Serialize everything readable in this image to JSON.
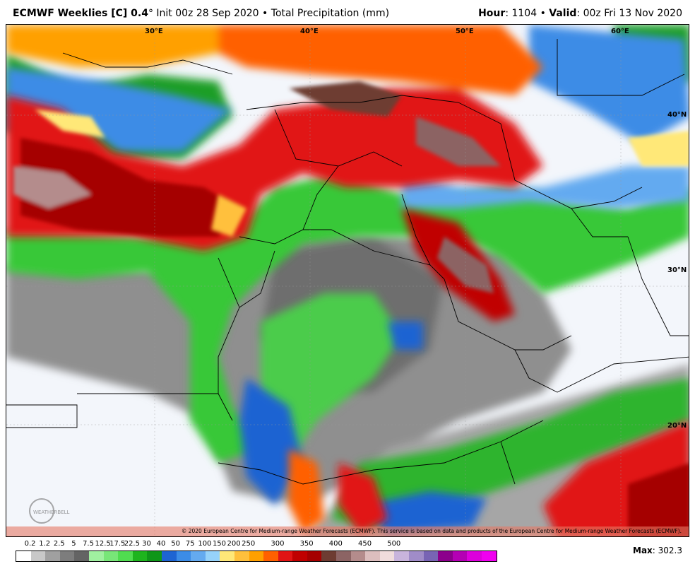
{
  "header": {
    "product": "ECMWF Weeklies [C] 0.4",
    "degree": "°",
    "init": "Init 00z 28 Sep 2020",
    "bullet": "•",
    "field": "Total Precipitation (mm)",
    "hour_label": "Hour",
    "hour_value": ": 1104",
    "valid_label": "Valid",
    "valid_value": ": 00z Fri 13 Nov 2020"
  },
  "map": {
    "lon_labels": [
      "30°E",
      "40°E",
      "50°E",
      "60°E"
    ],
    "lat_labels": [
      "40°N",
      "30°N",
      "20°N"
    ],
    "copyright": "© 2020 European Centre for Medium-range Weather Forecasts (ECMWF). This service is based on data and products of the European Centre for Medium-range Weather Forecasts (ECMWF).",
    "logo_text": "WEATHERBELL"
  },
  "colorbar": {
    "labels": [
      "0.2",
      "1.2",
      "2.5",
      "5",
      "7.5",
      "12.5",
      "17.5",
      "22.5",
      "30",
      "40",
      "50",
      "75",
      "100",
      "150",
      "200",
      "250",
      "300",
      "350",
      "400",
      "450",
      "500"
    ],
    "colors": [
      "#ffffff",
      "#c8c8c8",
      "#a0a0a0",
      "#7d7d7d",
      "#646464",
      "#a0f0a0",
      "#78e678",
      "#50dc50",
      "#1eb41e",
      "#0f9619",
      "#1e64d2",
      "#3c8ce6",
      "#64aaf0",
      "#96d2fa",
      "#ffe878",
      "#ffc03c",
      "#ffa000",
      "#ff6000",
      "#e11414",
      "#c00000",
      "#a50000",
      "#6e3c32",
      "#8c6464",
      "#b48c8c",
      "#dcbebe",
      "#f0dcdc",
      "#c8b4dc",
      "#a08cc8",
      "#7864b4",
      "#8c008c",
      "#b400b4",
      "#dc00dc",
      "#f000f0"
    ]
  },
  "max": {
    "label": "Max",
    "value": ": 302.3"
  }
}
